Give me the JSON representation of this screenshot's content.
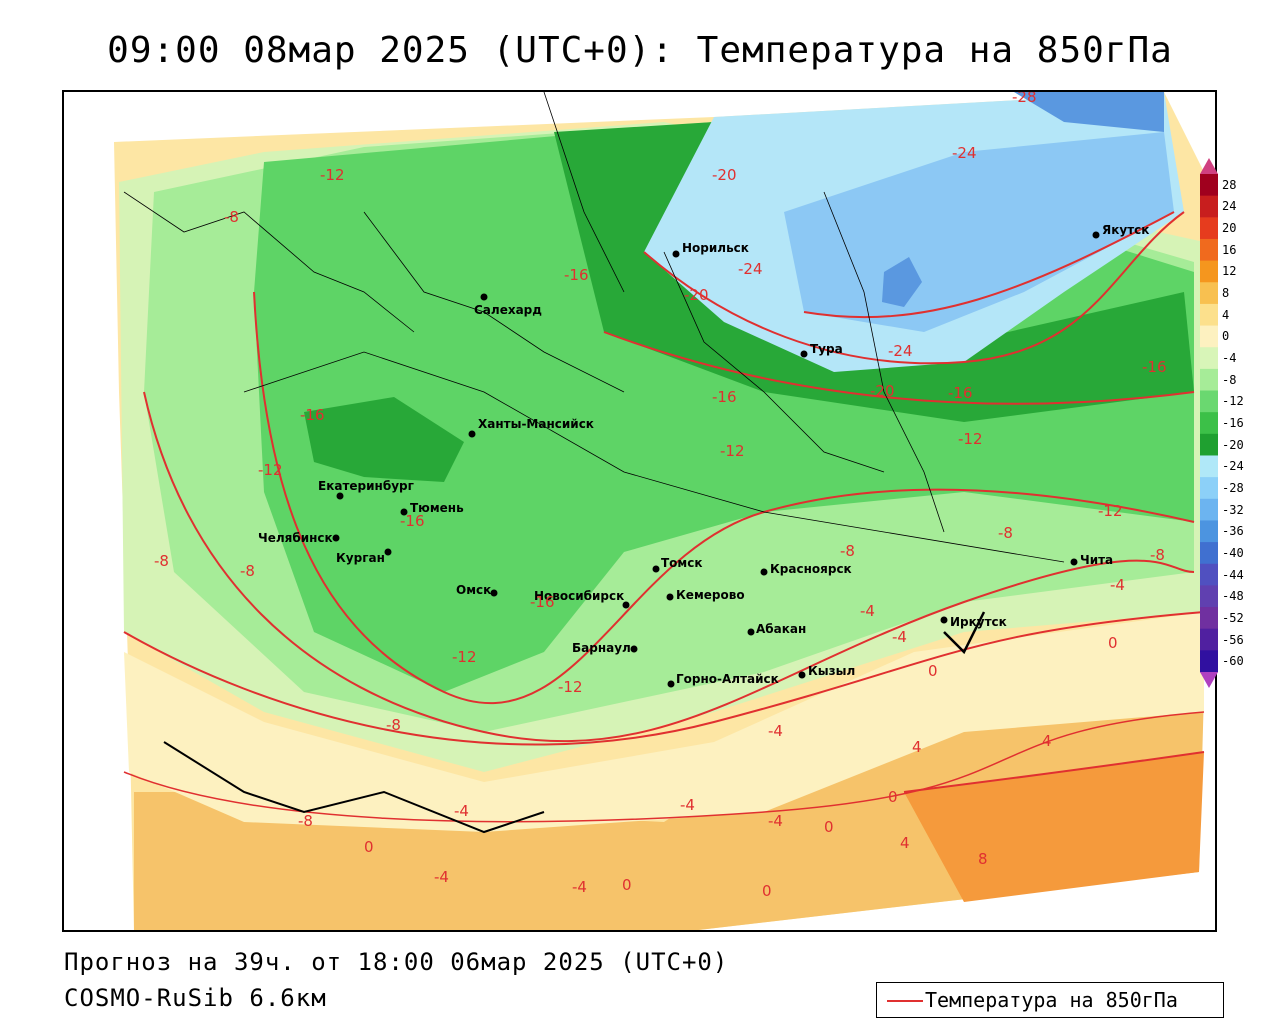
{
  "title": "09:00 08мар 2025 (UTC+0): Температура на 850гПа",
  "footer": {
    "forecast": "Прогноз на 39ч. от 18:00 06мар 2025 (UTC+0)",
    "model": "COSMO-RuSib 6.6км"
  },
  "legend": {
    "line_label": "Температура на 850гПа",
    "line_color": "#e03030"
  },
  "colorbar": {
    "labels": [
      "28",
      "24",
      "20",
      "16",
      "12",
      "8",
      "4",
      "0",
      "-4",
      "-8",
      "-12",
      "-16",
      "-20",
      "-24",
      "-28",
      "-32",
      "-36",
      "-40",
      "-44",
      "-48",
      "-52",
      "-56",
      "-60"
    ],
    "colors": [
      "#a0001e",
      "#c81e1e",
      "#e63c1e",
      "#f06a1e",
      "#f5961e",
      "#f8c050",
      "#fce08c",
      "#fdf1c0",
      "#d8f5b8",
      "#a6ec98",
      "#6ad870",
      "#3cc048",
      "#1fa030",
      "#b0e8f8",
      "#8cd0f8",
      "#6cb4f0",
      "#4c94e0",
      "#4070d0",
      "#5050c0",
      "#6040b0",
      "#7030a0",
      "#5020a0",
      "#3010a0"
    ]
  },
  "cities": [
    {
      "name": "Салехард"
    },
    {
      "name": "Норильск"
    },
    {
      "name": "Якутск"
    },
    {
      "name": "Тура"
    },
    {
      "name": "Ханты-Мансийск"
    },
    {
      "name": "Екатеринбург"
    },
    {
      "name": "Тюмень"
    },
    {
      "name": "Челябинск"
    },
    {
      "name": "Курган"
    },
    {
      "name": "Омск"
    },
    {
      "name": "Новосибирск"
    },
    {
      "name": "Томск"
    },
    {
      "name": "Кемерово"
    },
    {
      "name": "Красноярск"
    },
    {
      "name": "Барнаул"
    },
    {
      "name": "Абакан"
    },
    {
      "name": "Горно-Алтайск"
    },
    {
      "name": "Кызыл"
    },
    {
      "name": "Иркутск"
    },
    {
      "name": "Чита"
    }
  ],
  "isotherm_labels": [
    "-12",
    "-8",
    "-16",
    "-20",
    "-24",
    "-28",
    "-24",
    "-16",
    "-20",
    "-24",
    "-20",
    "-16",
    "-16",
    "-12",
    "-16",
    "-12",
    "-12",
    "-16",
    "-12",
    "-8",
    "-8",
    "-8",
    "-16",
    "-12",
    "-12",
    "-8",
    "-8",
    "-8",
    "-8",
    "-4",
    "-4",
    "-4",
    "-4",
    "-4",
    "-4",
    "-4",
    "-4",
    "0",
    "0",
    "0",
    "0",
    "0",
    "4",
    "4",
    "4",
    "8",
    "-4",
    "-4",
    "0",
    "0"
  ]
}
